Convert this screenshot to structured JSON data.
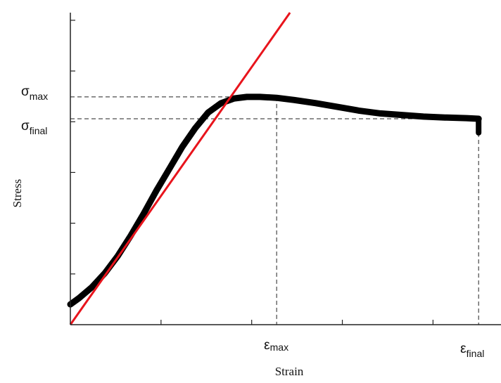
{
  "chart_data": {
    "type": "line",
    "title": "",
    "xlabel": "Strain",
    "ylabel": "Stress",
    "xlim": [
      0,
      1
    ],
    "ylim": [
      0,
      1
    ],
    "grid": false,
    "legend": "none",
    "annotations": {
      "sigma_max": {
        "symbol": "σ",
        "sub": "max",
        "y": 0.73
      },
      "sigma_final": {
        "symbol": "σ",
        "sub": "final",
        "y": 0.66
      },
      "eps_max": {
        "symbol": "ε",
        "sub": "max",
        "x": 0.479
      },
      "eps_final": {
        "symbol": "ε",
        "sub": "final",
        "x": 0.948
      }
    },
    "series": [
      {
        "color": "#000000",
        "x": [
          0,
          0.02,
          0.05,
          0.08,
          0.11,
          0.14,
          0.17,
          0.2,
          0.23,
          0.26,
          0.29,
          0.32,
          0.35,
          0.38,
          0.41,
          0.44,
          0.479,
          0.52,
          0.57,
          0.62,
          0.67,
          0.72,
          0.77,
          0.82,
          0.87,
          0.92,
          0.948
        ],
        "y": [
          0.065,
          0.085,
          0.12,
          0.165,
          0.22,
          0.285,
          0.355,
          0.43,
          0.5,
          0.57,
          0.63,
          0.68,
          0.71,
          0.725,
          0.73,
          0.73,
          0.727,
          0.72,
          0.71,
          0.698,
          0.686,
          0.677,
          0.672,
          0.667,
          0.664,
          0.662,
          0.66
        ]
      },
      {
        "color": "#e8141c",
        "x": [
          0,
          0.51
        ],
        "y": [
          0,
          1.0
        ]
      }
    ],
    "end_drop": {
      "x": 0.948,
      "y_from": 0.66,
      "y_to": 0.615
    }
  }
}
